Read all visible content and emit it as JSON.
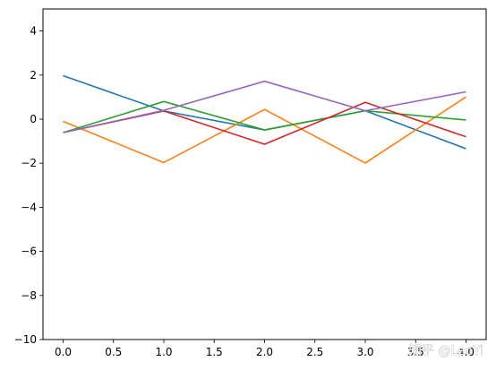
{
  "chart_data": {
    "type": "line",
    "x": [
      0,
      1,
      2,
      3,
      4
    ],
    "series": [
      {
        "color": "#1f77b4",
        "values": [
          1.97,
          0.37,
          -0.49,
          0.38,
          -1.34
        ]
      },
      {
        "color": "#ff7f0e",
        "values": [
          -0.1,
          -1.97,
          0.44,
          -1.99,
          1.01
        ]
      },
      {
        "color": "#2ca02c",
        "values": [
          -0.61,
          0.8,
          -0.49,
          0.38,
          -0.04
        ]
      },
      {
        "color": "#d62728",
        "values": [
          -0.61,
          0.37,
          -1.14,
          0.76,
          -0.8
        ]
      },
      {
        "color": "#9467bd",
        "values": [
          -0.61,
          0.4,
          1.72,
          0.38,
          1.24
        ]
      }
    ],
    "xlim": [
      -0.2,
      4.2
    ],
    "ylim": [
      -10,
      5
    ],
    "xticks": [
      "0.0",
      "0.5",
      "1.0",
      "1.5",
      "2.0",
      "2.5",
      "3.0",
      "3.5",
      "4.0"
    ],
    "yticks": [
      "4",
      "2",
      "0",
      "−2",
      "−4",
      "−6",
      "−8",
      "−10"
    ],
    "grid": false,
    "title": "",
    "xlabel": "",
    "ylabel": ""
  },
  "watermark": {
    "text": "知乎 @LeoYi"
  }
}
